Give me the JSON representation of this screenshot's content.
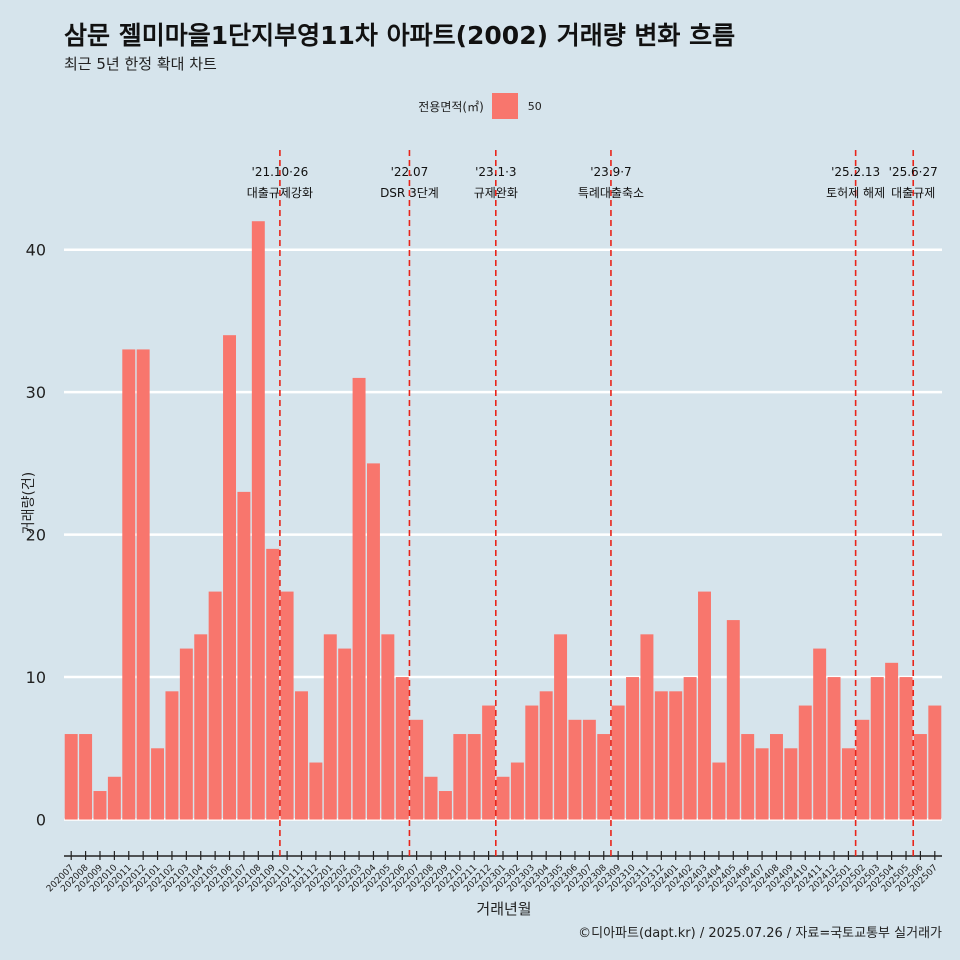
{
  "title": "삼문 젤미마을1단지부영11차 아파트(2002) 거래량 변화 흐름",
  "subtitle": "최근 5년 한정 확대 차트",
  "legend": {
    "title": "전용면적(㎡)",
    "label": "50",
    "color": "#f8766d"
  },
  "caption": "©디아파트(dapt.kr) / 2025.07.26 / 자료=국토교통부 실거래가",
  "colors": {
    "background": "#d6e4ec",
    "grid": "#ffffff",
    "bar": "#f8766d",
    "event_line": "#e8241a"
  },
  "chart_data": {
    "type": "bar",
    "title": "삼문 젤미마을1단지부영11차 아파트(2002) 거래량 변화 흐름",
    "subtitle": "최근 5년 한정 확대 차트",
    "xlabel": "거래년월",
    "ylabel": "거래량(건)",
    "ylim": [
      -2,
      47
    ],
    "yticks": [
      0,
      10,
      20,
      30,
      40
    ],
    "grid": "horizontal",
    "legend_position": "top",
    "categories": [
      "202007",
      "202008",
      "202009",
      "202010",
      "202011",
      "202012",
      "202101",
      "202102",
      "202103",
      "202104",
      "202105",
      "202106",
      "202107",
      "202108",
      "202109",
      "202110",
      "202111",
      "202112",
      "202201",
      "202202",
      "202203",
      "202204",
      "202205",
      "202206",
      "202207",
      "202208",
      "202209",
      "202210",
      "202211",
      "202212",
      "202301",
      "202302",
      "202303",
      "202304",
      "202305",
      "202306",
      "202307",
      "202308",
      "202309",
      "202310",
      "202311",
      "202312",
      "202401",
      "202402",
      "202403",
      "202404",
      "202405",
      "202406",
      "202407",
      "202408",
      "202409",
      "202410",
      "202411",
      "202412",
      "202501",
      "202502",
      "202503",
      "202504",
      "202505",
      "202506",
      "202507"
    ],
    "series": [
      {
        "name": "50",
        "values": [
          6,
          6,
          2,
          3,
          33,
          33,
          5,
          9,
          12,
          13,
          16,
          34,
          23,
          42,
          19,
          16,
          9,
          4,
          13,
          12,
          31,
          25,
          13,
          10,
          7,
          3,
          2,
          6,
          6,
          8,
          3,
          4,
          8,
          9,
          13,
          7,
          7,
          6,
          8,
          10,
          13,
          9,
          9,
          10,
          16,
          4,
          14,
          6,
          5,
          6,
          5,
          8,
          12,
          10,
          5,
          7,
          10,
          11,
          10,
          6,
          8
        ]
      }
    ],
    "events": [
      {
        "date": "'21.10·26",
        "label": "대출규제강화",
        "position": 15
      },
      {
        "date": "'22.07",
        "label": "DSR 3단계",
        "position": 24
      },
      {
        "date": "'23.1·3",
        "label": "규제완화",
        "position": 30
      },
      {
        "date": "'23.9·7",
        "label": "특례대출축소",
        "position": 38
      },
      {
        "date": "'25.2.13",
        "label": "토허제 해제",
        "position": 55
      },
      {
        "date": "'25.6·27",
        "label": "대출규제",
        "position": 59
      }
    ]
  }
}
